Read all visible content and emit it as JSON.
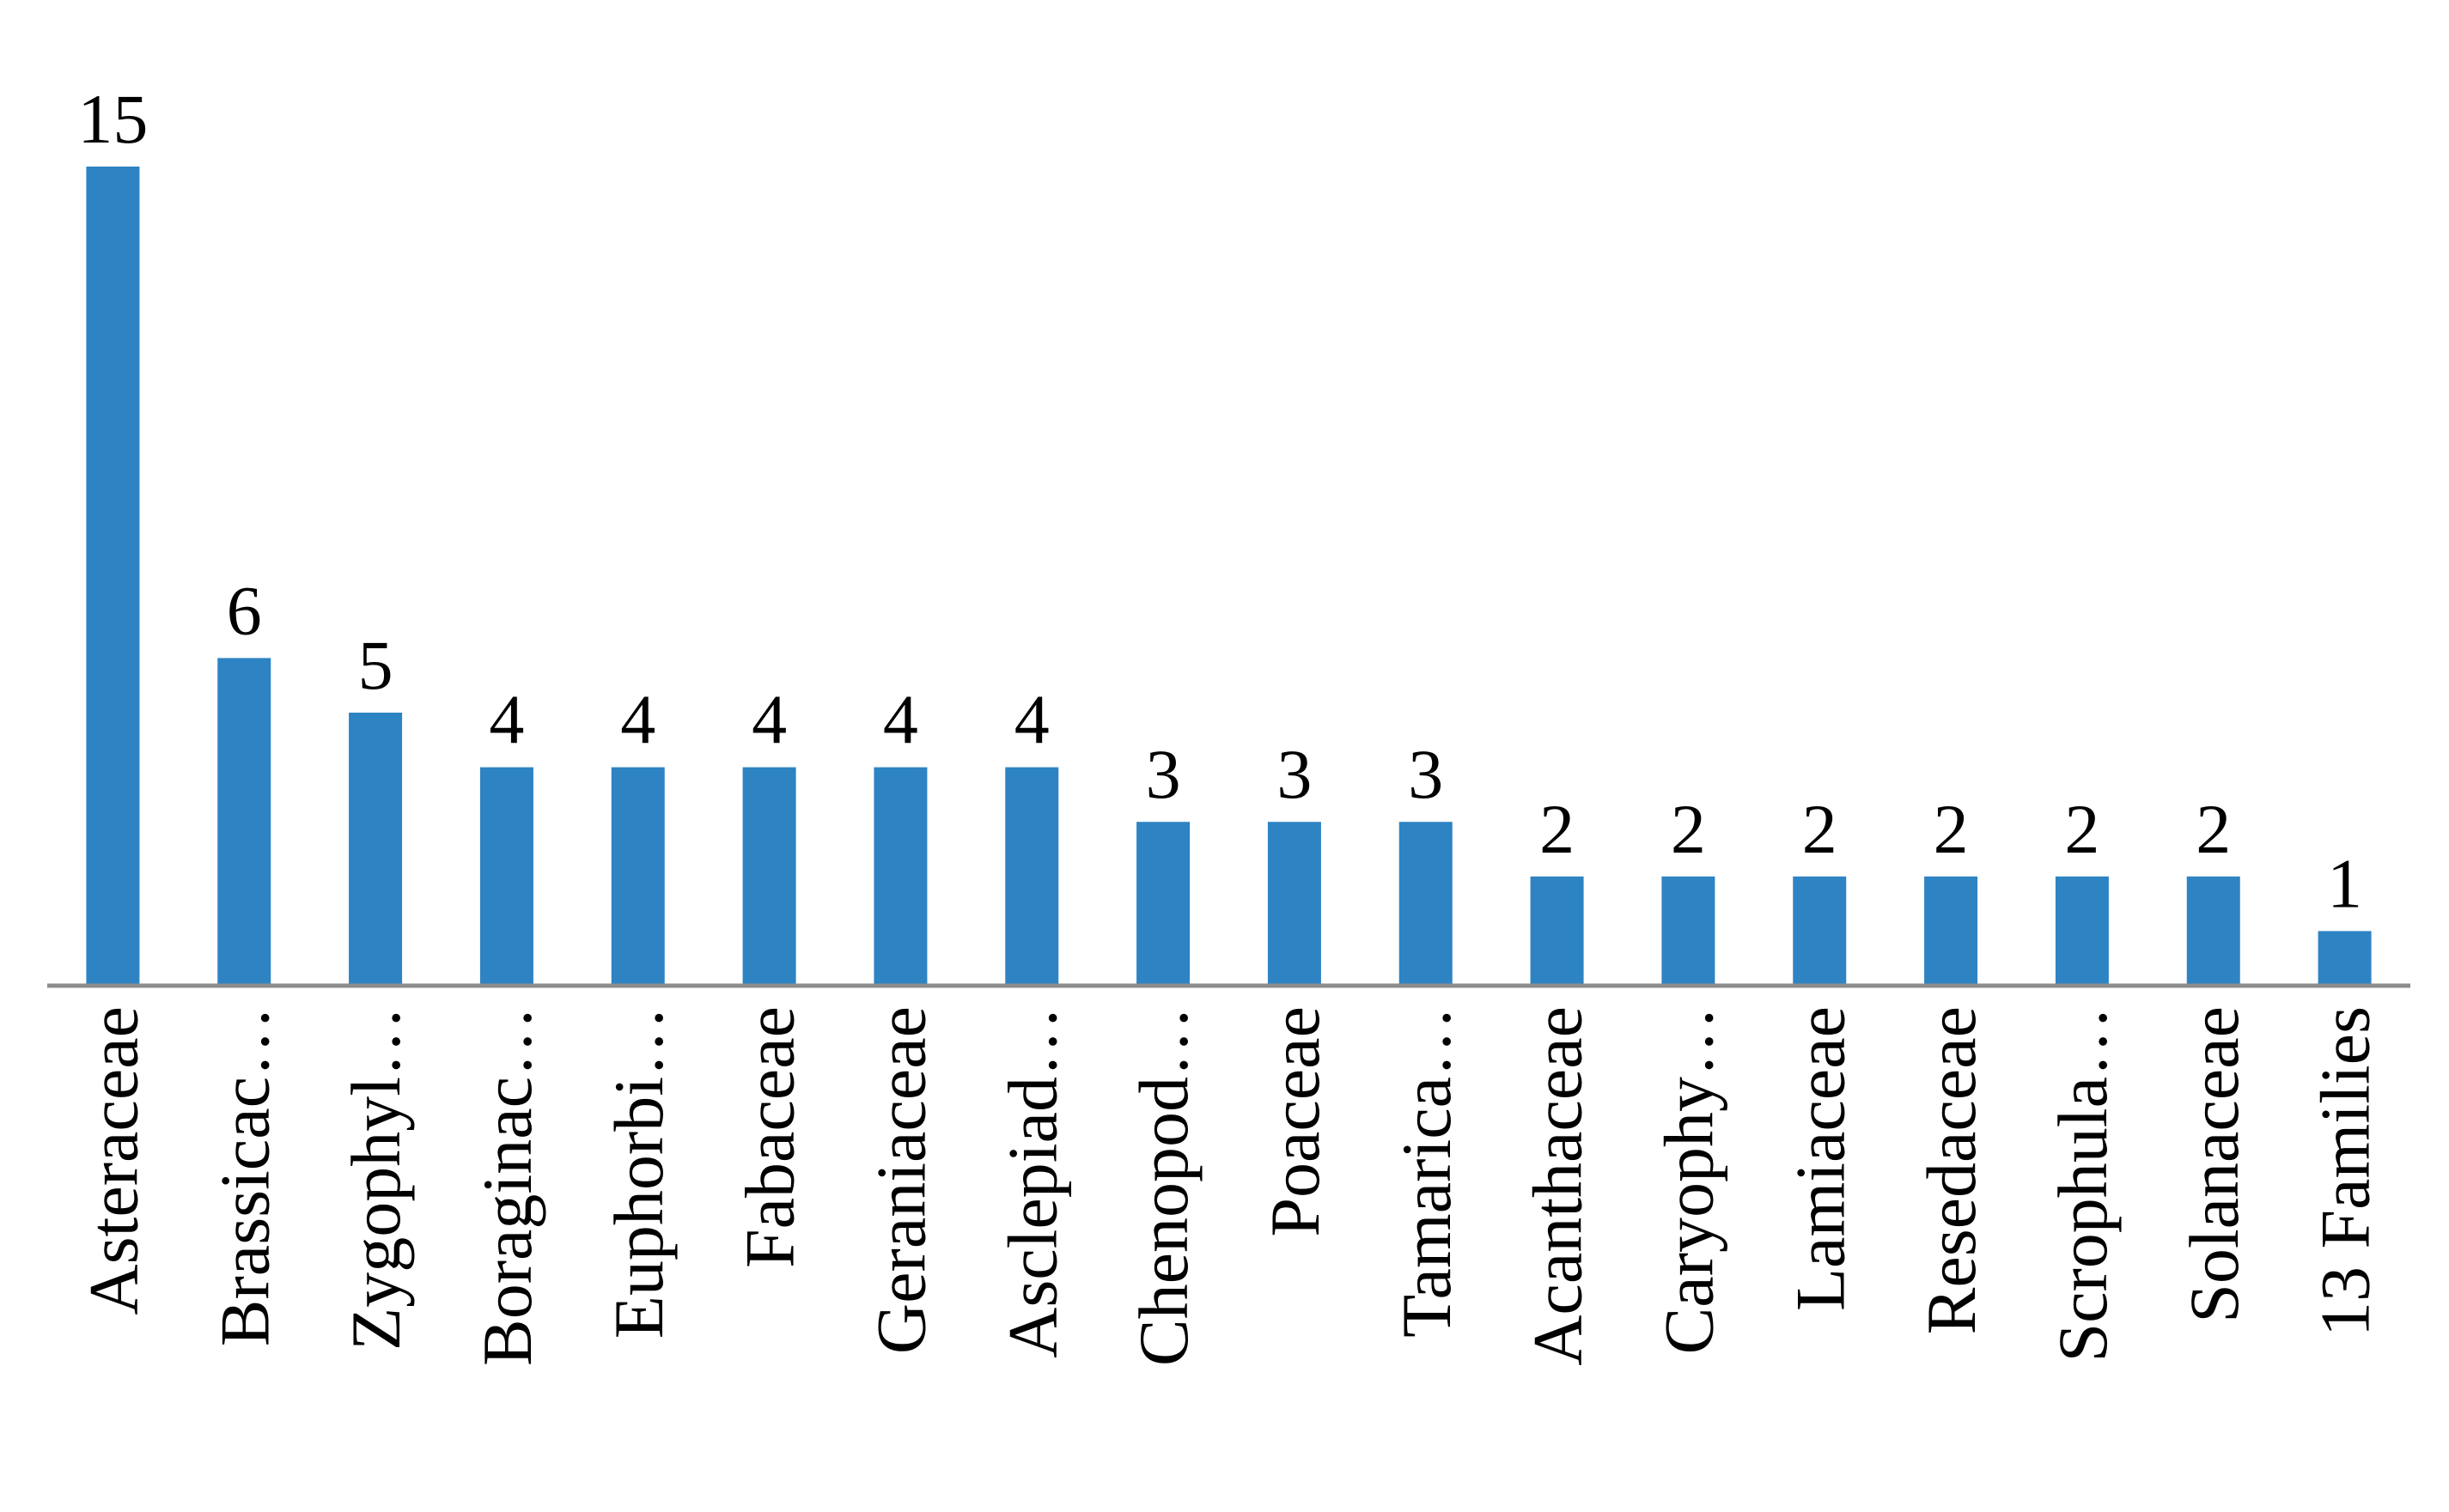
{
  "chart_data": {
    "type": "bar",
    "categories": [
      "Asteraceae",
      "Brassicac…",
      "Zygophyl…",
      "Boraginac…",
      "Euphorbi…",
      "Fabaceae",
      "Geraniaceae",
      "Asclepiad…",
      "Chenopod…",
      "Poaceae",
      "Tamarica…",
      "Acanthaceae",
      "Caryophy…",
      "Lamiaceae",
      "Resedaceae",
      "Scrophula…",
      "Solanaceae",
      "13 Families"
    ],
    "values": [
      15,
      6,
      5,
      4,
      4,
      4,
      4,
      4,
      3,
      3,
      3,
      2,
      2,
      2,
      2,
      2,
      2,
      1
    ],
    "color": "#2e83c3"
  }
}
